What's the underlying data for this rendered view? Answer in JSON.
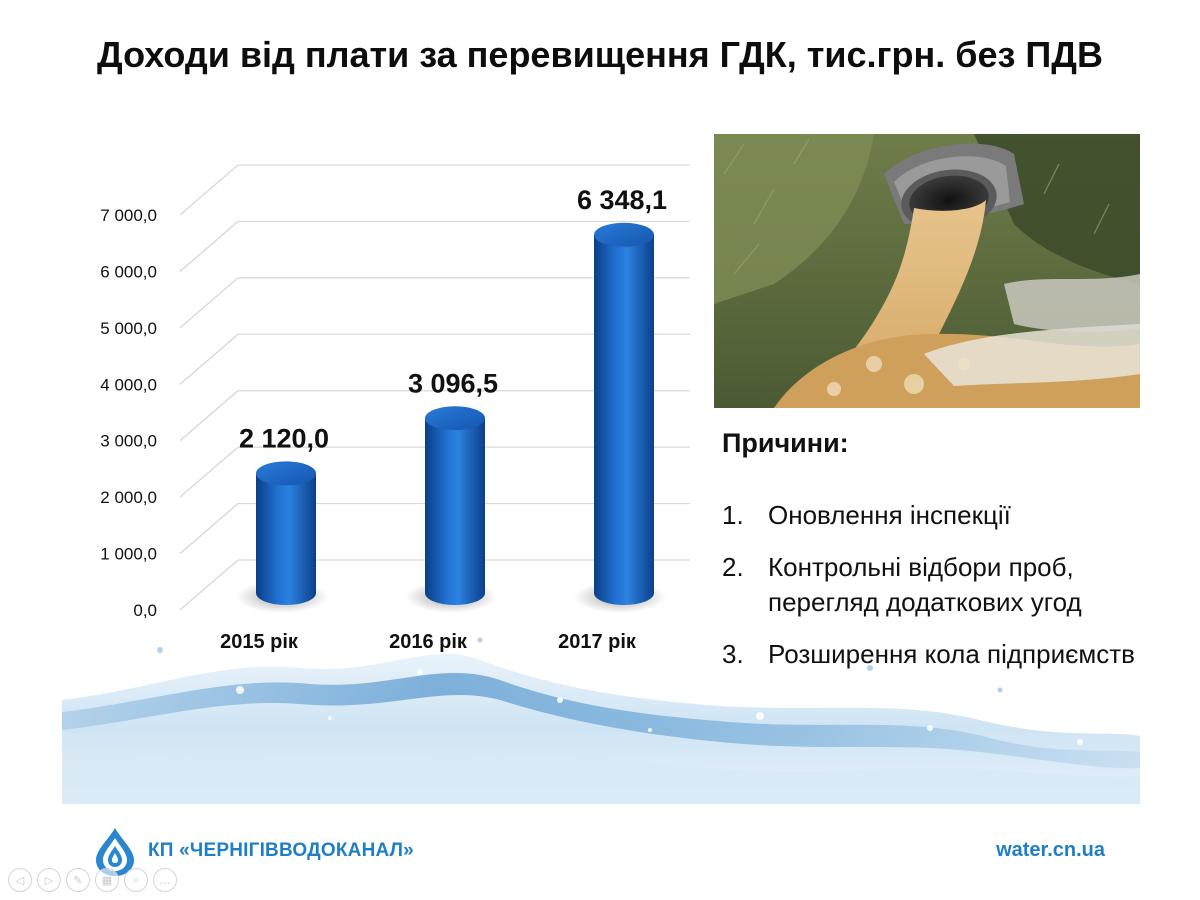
{
  "slide": {
    "title": "Доходи від плати за перевищення ГДК, тис.грн. без ПДВ"
  },
  "chart_data": {
    "type": "bar",
    "style": "3d-cylinder",
    "categories": [
      "2015 рік",
      "2016 рік",
      "2017 рік"
    ],
    "values": [
      2120.0,
      3096.5,
      6348.1
    ],
    "data_labels": [
      "2 120,0",
      "3 096,5",
      "6 348,1"
    ],
    "ylim": [
      0,
      7000
    ],
    "yticks": [
      0,
      1000,
      2000,
      3000,
      4000,
      5000,
      6000,
      7000
    ],
    "ytick_labels": [
      "0,0",
      "1 000,0",
      "2 000,0",
      "3 000,0",
      "4 000,0",
      "5 000,0",
      "6 000,0",
      "7 000,0"
    ],
    "grid": true,
    "legend": "none",
    "bar_color": "#1560c0",
    "grid_color": "#d9d9d9"
  },
  "image": {
    "subject": "pipe-discharge-photo"
  },
  "reasons": {
    "title": "Причини:",
    "items": [
      {
        "num": "1.",
        "text": "Оновлення інспекції"
      },
      {
        "num": "2.",
        "text": "Контрольні відбори проб, перегляд додаткових угод"
      },
      {
        "num": "3.",
        "text": "Розширення кола підприємств"
      }
    ]
  },
  "footer": {
    "org": "КП «ЧЕРНІГІВВОДОКАНАЛ»",
    "site": "water.cn.ua",
    "accent_color": "#1f7fc6"
  },
  "controls": [
    {
      "icon": "prev-icon",
      "glyph": "◁"
    },
    {
      "icon": "next-icon",
      "glyph": "▷"
    },
    {
      "icon": "pen-icon",
      "glyph": "✎"
    },
    {
      "icon": "slides-icon",
      "glyph": "▦"
    },
    {
      "icon": "zoom-icon",
      "glyph": "⌕"
    },
    {
      "icon": "more-icon",
      "glyph": "…"
    }
  ]
}
